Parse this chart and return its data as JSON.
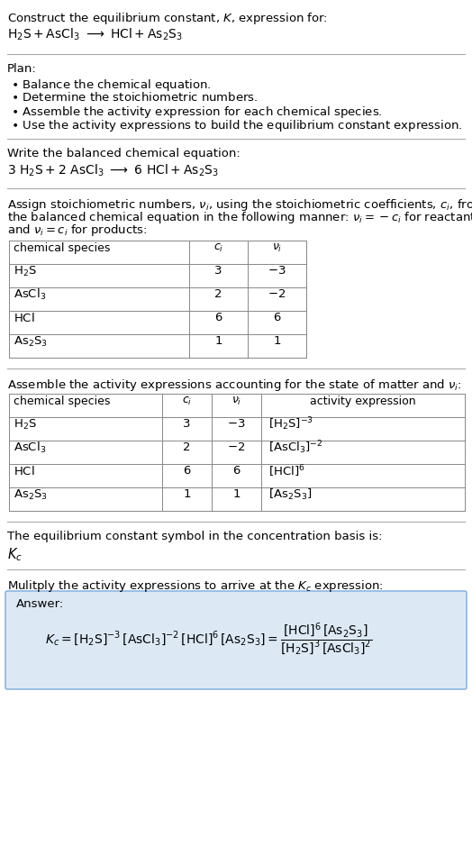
{
  "bg_color": "#ffffff",
  "text_color": "#000000",
  "title_line1": "Construct the equilibrium constant, $K$, expression for:",
  "title_line2": "$\\mathrm{H_2S + AsCl_3 \\ \\longrightarrow \\ HCl + As_2S_3}$",
  "plan_header": "Plan:",
  "plan_items": [
    "\\textbf{\\cdot} Balance the chemical equation.",
    "\\textbf{\\cdot} Determine the stoichiometric numbers.",
    "\\textbf{\\cdot} Assemble the activity expression for each chemical species.",
    "\\textbf{\\cdot} Use the activity expressions to build the equilibrium constant expression."
  ],
  "balanced_header": "Write the balanced chemical equation:",
  "balanced_eq": "$\\mathrm{3\\ H_2S + 2\\ AsCl_3 \\ \\longrightarrow \\ 6\\ HCl + As_2S_3}$",
  "stoich_header": "Assign stoichiometric numbers, $\\nu_i$, using the stoichiometric coefficients, $c_i$, from\\nthe balanced chemical equation in the following manner: $\\nu_i = -c_i$ for reactants\\nand $\\nu_i = c_i$ for products:",
  "table1_cols": [
    "chemical species",
    "$c_i$",
    "$\\nu_i$"
  ],
  "table1_rows": [
    [
      "$\\mathrm{H_2S}$",
      "3",
      "$-3$"
    ],
    [
      "$\\mathrm{AsCl_3}$",
      "2",
      "$-2$"
    ],
    [
      "$\\mathrm{HCl}$",
      "6",
      "6"
    ],
    [
      "$\\mathrm{As_2S_3}$",
      "1",
      "1"
    ]
  ],
  "activity_header": "Assemble the activity expressions accounting for the state of matter and $\\nu_i$:",
  "table2_cols": [
    "chemical species",
    "$c_i$",
    "$\\nu_i$",
    "activity expression"
  ],
  "table2_rows": [
    [
      "$\\mathrm{H_2S}$",
      "3",
      "$-3$",
      "$[\\mathrm{H_2S}]^{-3}$"
    ],
    [
      "$\\mathrm{AsCl_3}$",
      "2",
      "$-2$",
      "$[\\mathrm{AsCl_3}]^{-2}$"
    ],
    [
      "$\\mathrm{HCl}$",
      "6",
      "6",
      "$[\\mathrm{HCl}]^{6}$"
    ],
    [
      "$\\mathrm{As_2S_3}$",
      "1",
      "1",
      "$[\\mathrm{As_2S_3}]$"
    ]
  ],
  "kc_header": "The equilibrium constant symbol in the concentration basis is:",
  "kc_symbol": "$K_c$",
  "multiply_header": "Mulitply the activity expressions to arrive at the $K_c$ expression:",
  "answer_box_color": "#dce9f5",
  "answer_label": "Answer:",
  "answer_line1": "$K_c = [\\mathrm{H_2S}]^{-3}\\,[\\mathrm{AsCl_3}]^{-2}\\,[\\mathrm{HCl}]^{6}\\,[\\mathrm{As_2S_3}] = \\dfrac{[\\mathrm{HCl}]^{6}\\,[\\mathrm{As_2S_3}]}{[\\mathrm{H_2S}]^{3}\\,[\\mathrm{AsCl_3}]^{2}}$"
}
